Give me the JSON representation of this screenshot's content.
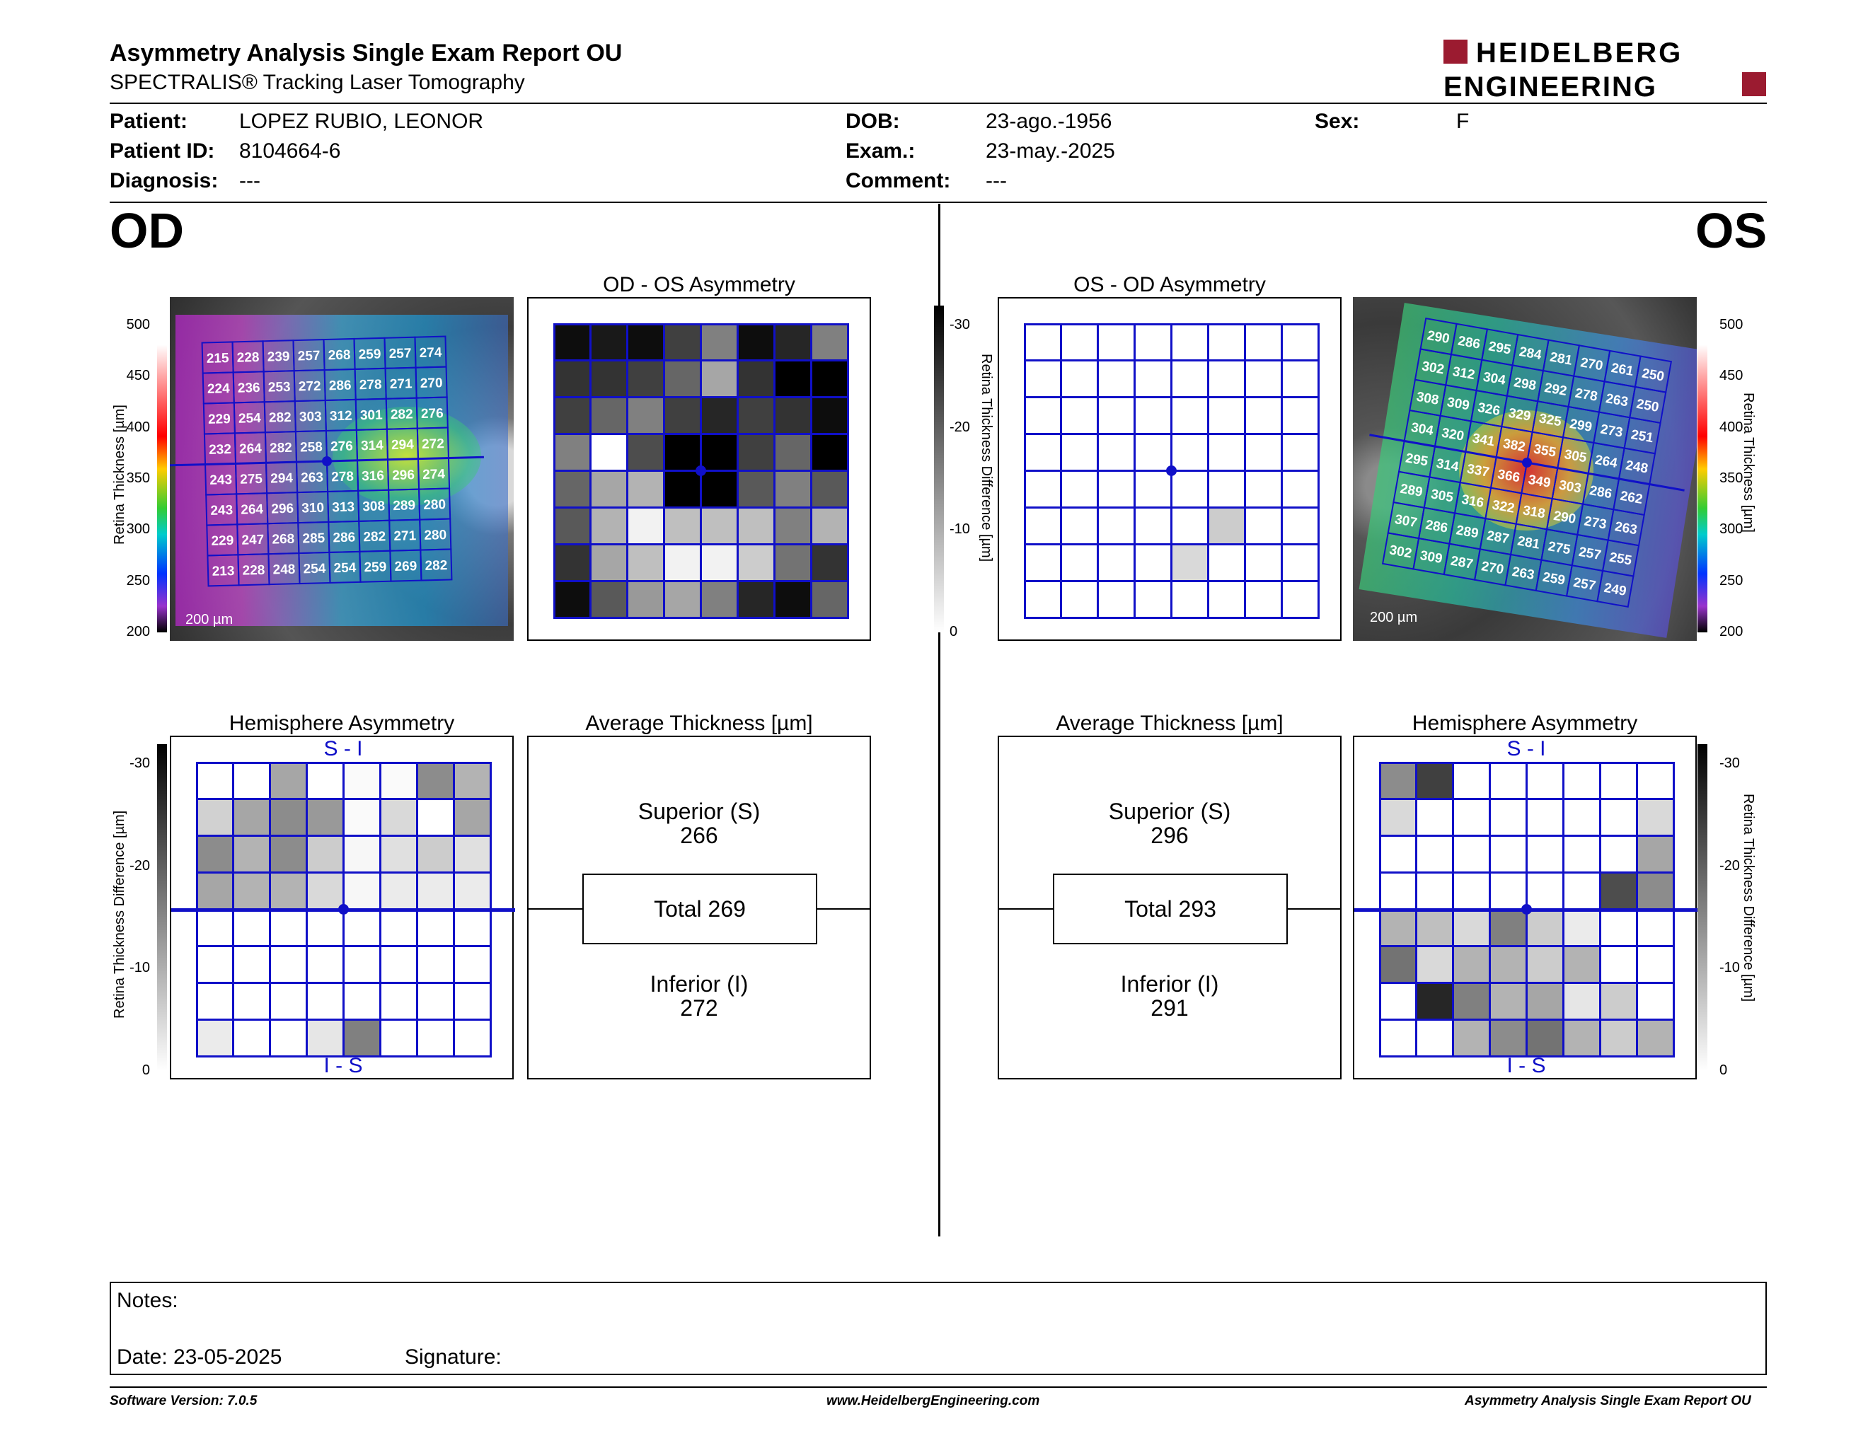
{
  "header": {
    "title": "Asymmetry Analysis Single Exam Report OU",
    "subtitle": "SPECTRALIS® Tracking Laser Tomography",
    "logo_line1": "HEIDELBERG",
    "logo_line2": "ENGINEERING",
    "logo_color": "#9b1b30"
  },
  "patient": {
    "patient_label": "Patient:",
    "patient_value": "LOPEZ RUBIO, LEONOR",
    "id_label": "Patient ID:",
    "id_value": "8104664-6",
    "diagnosis_label": "Diagnosis:",
    "diagnosis_value": "---",
    "dob_label": "DOB:",
    "dob_value": "23-ago.-1956",
    "exam_label": "Exam.:",
    "exam_value": "23-may.-2025",
    "comment_label": "Comment:",
    "comment_value": "---",
    "sex_label": "Sex:",
    "sex_value": "F"
  },
  "od": {
    "label": "OD",
    "asym_title": "OD - OS Asymmetry",
    "hemi_title": "Hemisphere Asymmetry",
    "avg_title": "Average Thickness [µm]",
    "scale_label": "200 µm",
    "superior_label": "Superior (S)",
    "superior_value": "266",
    "total_text": "Total 269",
    "inferior_label": "Inferior (I)",
    "inferior_value": "272",
    "hemi_top": "S - I",
    "hemi_bottom": "I - S",
    "thickness_grid": [
      [
        215,
        228,
        239,
        257,
        268,
        259,
        257,
        274
      ],
      [
        224,
        236,
        253,
        272,
        286,
        278,
        271,
        270
      ],
      [
        229,
        254,
        282,
        303,
        312,
        301,
        282,
        276
      ],
      [
        232,
        264,
        282,
        258,
        276,
        314,
        294,
        272
      ],
      [
        243,
        275,
        294,
        263,
        278,
        316,
        296,
        274
      ],
      [
        243,
        264,
        296,
        310,
        313,
        308,
        289,
        280
      ],
      [
        229,
        247,
        268,
        285,
        286,
        282,
        271,
        280
      ],
      [
        213,
        228,
        248,
        254,
        254,
        259,
        269,
        282
      ]
    ],
    "asym_gray": [
      [
        0.95,
        0.9,
        0.95,
        0.75,
        0.5,
        0.95,
        0.85,
        0.5
      ],
      [
        0.8,
        0.8,
        0.75,
        0.6,
        0.35,
        0.8,
        1,
        1
      ],
      [
        0.75,
        0.6,
        0.5,
        0.75,
        0.85,
        0.75,
        0.8,
        0.95
      ],
      [
        0.5,
        0,
        0.7,
        1,
        1,
        0.75,
        0.6,
        1
      ],
      [
        0.6,
        0.35,
        0.3,
        1,
        1,
        0.65,
        0.5,
        0.65
      ],
      [
        0.65,
        0.3,
        0.05,
        0.25,
        0.25,
        0.25,
        0.5,
        0.3
      ],
      [
        0.8,
        0.35,
        0.25,
        0.05,
        0.05,
        0.2,
        0.55,
        0.8
      ],
      [
        0.95,
        0.65,
        0.4,
        0.35,
        0.5,
        0.85,
        0.95,
        0.6
      ]
    ],
    "hemi_gray": [
      [
        0,
        0,
        0.35,
        0,
        0.02,
        0.02,
        0.45,
        0.3
      ],
      [
        0.18,
        0.35,
        0.45,
        0.4,
        0.02,
        0.15,
        0,
        0.35
      ],
      [
        0.45,
        0.3,
        0.45,
        0.2,
        0.03,
        0.12,
        0.2,
        0.12
      ],
      [
        0.35,
        0.3,
        0.3,
        0.15,
        0.03,
        0.08,
        0.08,
        0.08
      ],
      [
        0,
        0,
        0,
        0,
        0,
        0,
        0,
        0
      ],
      [
        0,
        0,
        0,
        0,
        0,
        0,
        0,
        0
      ],
      [
        0,
        0,
        0,
        0,
        0,
        0,
        0,
        0
      ],
      [
        0.08,
        0,
        0,
        0.1,
        0.5,
        0,
        0,
        0
      ]
    ]
  },
  "os": {
    "label": "OS",
    "asym_title": "OS - OD Asymmetry",
    "hemi_title": "Hemisphere Asymmetry",
    "avg_title": "Average Thickness [µm]",
    "scale_label": "200 µm",
    "superior_label": "Superior (S)",
    "superior_value": "296",
    "total_text": "Total 293",
    "inferior_label": "Inferior (I)",
    "inferior_value": "291",
    "hemi_top": "S - I",
    "hemi_bottom": "I - S",
    "thickness_grid": [
      [
        290,
        286,
        295,
        284,
        281,
        270,
        261,
        250
      ],
      [
        302,
        312,
        304,
        298,
        292,
        278,
        263,
        250
      ],
      [
        308,
        309,
        326,
        329,
        325,
        299,
        273,
        251
      ],
      [
        304,
        320,
        341,
        382,
        355,
        305,
        264,
        248
      ],
      [
        295,
        314,
        337,
        366,
        349,
        303,
        286,
        262
      ],
      [
        289,
        305,
        316,
        322,
        318,
        290,
        273,
        263
      ],
      [
        307,
        286,
        289,
        287,
        281,
        275,
        257,
        255
      ],
      [
        302,
        309,
        287,
        270,
        263,
        259,
        257,
        249
      ]
    ],
    "asym_gray": [
      [
        0,
        0,
        0,
        0,
        0,
        0,
        0,
        0
      ],
      [
        0,
        0,
        0,
        0,
        0,
        0,
        0,
        0
      ],
      [
        0,
        0,
        0,
        0,
        0,
        0,
        0,
        0
      ],
      [
        0,
        0,
        0,
        0,
        0,
        0,
        0,
        0
      ],
      [
        0,
        0,
        0,
        0,
        0,
        0,
        0,
        0
      ],
      [
        0,
        0,
        0,
        0,
        0,
        0.2,
        0,
        0
      ],
      [
        0,
        0,
        0,
        0,
        0.15,
        0,
        0,
        0
      ],
      [
        0,
        0,
        0,
        0,
        0,
        0,
        0,
        0
      ]
    ],
    "hemi_gray": [
      [
        0.45,
        0.75,
        0,
        0,
        0,
        0,
        0,
        0
      ],
      [
        0.15,
        0,
        0,
        0,
        0,
        0,
        0,
        0.15
      ],
      [
        0,
        0,
        0,
        0,
        0,
        0,
        0,
        0.35
      ],
      [
        0,
        0,
        0,
        0,
        0,
        0,
        0.7,
        0.45
      ],
      [
        0.3,
        0.25,
        0.15,
        0.5,
        0.2,
        0.08,
        0,
        0
      ],
      [
        0.55,
        0.15,
        0.3,
        0.3,
        0.2,
        0.3,
        0,
        0
      ],
      [
        0,
        0.85,
        0.5,
        0.3,
        0.35,
        0.1,
        0.2,
        0
      ],
      [
        0,
        0,
        0.3,
        0.45,
        0.55,
        0.3,
        0.2,
        0.3
      ]
    ]
  },
  "scales": {
    "thickness_title": "Retina Thickness [µm]",
    "thickness_ticks": [
      "500",
      "450",
      "400",
      "350",
      "300",
      "250",
      "200"
    ],
    "diff_title": "Retina Thickness Difference [µm]",
    "diff_ticks": [
      "-30",
      "-20",
      "-10",
      "0"
    ]
  },
  "notes": {
    "notes_label": "Notes:",
    "date_label": "Date: 23-05-2025",
    "signature_label": "Signature:"
  },
  "footer": {
    "version": "Software Version: 7.0.5",
    "url": "www.HeidelbergEngineering.com",
    "report": "Asymmetry Analysis Single Exam Report OU"
  }
}
